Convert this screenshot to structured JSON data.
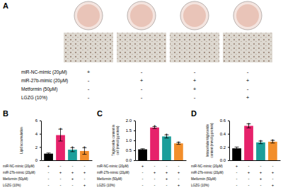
{
  "panel_a": {
    "label": "A",
    "conditions": [
      {
        "label": "miR-NC-mimic (20μM)",
        "signs": [
          "+",
          "-",
          "-",
          "-"
        ]
      },
      {
        "label": "miR-27b-mimic (20μM)",
        "signs": [
          "-",
          "+",
          "+",
          "+"
        ]
      },
      {
        "label": "Metformin (50μM)",
        "signs": [
          "-",
          "-",
          "+",
          "-"
        ]
      },
      {
        "label": "LGZG (10%)",
        "signs": [
          "-",
          "-",
          "-",
          "+"
        ]
      }
    ]
  },
  "chart_data": [
    {
      "type": "bar",
      "title": "B",
      "ylabel": "Lipid accumulation",
      "categories": [
        null,
        null,
        null,
        null
      ],
      "values": [
        1.0,
        3.8,
        1.6,
        1.4
      ],
      "errors": [
        0.1,
        0.9,
        0.3,
        0.5
      ],
      "annotations": [
        null,
        "*",
        "*",
        "*"
      ],
      "colors": [
        "#000000",
        "#e6226b",
        "#1b9e9a",
        "#f28e2b"
      ],
      "ylim": [
        0,
        6
      ],
      "yticks": [
        0,
        2,
        4,
        6
      ],
      "tick_labels": "y",
      "conditions": [
        {
          "label": "miR-NC-mimic (20μM)",
          "signs": [
            "+",
            "-",
            "-",
            "-"
          ]
        },
        {
          "label": "miR-27b-mimic (20μM)",
          "signs": [
            "-",
            "+",
            "+",
            "+"
          ]
        },
        {
          "label": "Metformin (50μM)",
          "signs": [
            "-",
            "-",
            "+",
            "-"
          ]
        },
        {
          "label": "LGZG (10%)",
          "signs": [
            "-",
            "-",
            "-",
            "+"
          ]
        }
      ]
    },
    {
      "type": "bar",
      "title": "C",
      "ylabel": "Triglyceride content in\ncell (mmol/g protein)",
      "categories": [
        null,
        null,
        null,
        null
      ],
      "values": [
        0.55,
        1.65,
        1.2,
        0.85
      ],
      "errors": [
        0.03,
        0.05,
        0.08,
        0.05
      ],
      "annotations": [
        null,
        "*",
        "*",
        "*"
      ],
      "colors": [
        "#000000",
        "#e6226b",
        "#1b9e9a",
        "#f28e2b"
      ],
      "ylim": [
        0,
        2
      ],
      "yticks": [
        {
          "value": 0,
          "label": "0.0"
        },
        {
          "value": 0.5,
          "label": "0.5"
        },
        {
          "value": 1,
          "label": "1.0"
        },
        {
          "value": 1.5,
          "label": "1.5"
        },
        {
          "value": 2,
          "label": "2.0"
        }
      ],
      "tick_labels": "y",
      "conditions": [
        {
          "label": "miR-NC-mimic (20μM)",
          "signs": [
            "+",
            "-",
            "-",
            "-"
          ]
        },
        {
          "label": "miR-27b-mimic (20μM)",
          "signs": [
            "-",
            "+",
            "+",
            "+"
          ]
        },
        {
          "label": "Metformin (50μM)",
          "signs": [
            "-",
            "-",
            "+",
            "-"
          ]
        },
        {
          "label": "LGZG (10%)",
          "signs": [
            "-",
            "-",
            "-",
            "+"
          ]
        }
      ]
    },
    {
      "type": "bar",
      "title": "D",
      "ylabel": "Intracellular triglyceride\ncontent (mmol/g protein)",
      "categories": [
        null,
        null,
        null,
        null
      ],
      "values": [
        0.18,
        0.52,
        0.27,
        0.28
      ],
      "errors": [
        0.02,
        0.03,
        0.02,
        0.02
      ],
      "annotations": [
        null,
        "*",
        "*",
        "*"
      ],
      "colors": [
        "#000000",
        "#e6226b",
        "#1b9e9a",
        "#f28e2b"
      ],
      "ylim": [
        0,
        0.6
      ],
      "yticks": [
        {
          "value": 0,
          "label": "0.0"
        },
        {
          "value": 0.2,
          "label": "0.2"
        },
        {
          "value": 0.4,
          "label": "0.4"
        },
        {
          "value": 0.6,
          "label": "0.6"
        }
      ],
      "tick_labels": "y",
      "conditions": [
        {
          "label": "miR-NC-mimic (20μM)",
          "signs": [
            "+",
            "-",
            "-",
            "-"
          ]
        },
        {
          "label": "miR-27b-mimic (20μM)",
          "signs": [
            "-",
            "+",
            "+",
            "+"
          ]
        },
        {
          "label": "Metformin (50μM)",
          "signs": [
            "-",
            "-",
            "+",
            "-"
          ]
        },
        {
          "label": "LGZG (10%)",
          "signs": [
            "-",
            "-",
            "-",
            "+"
          ]
        }
      ]
    }
  ]
}
